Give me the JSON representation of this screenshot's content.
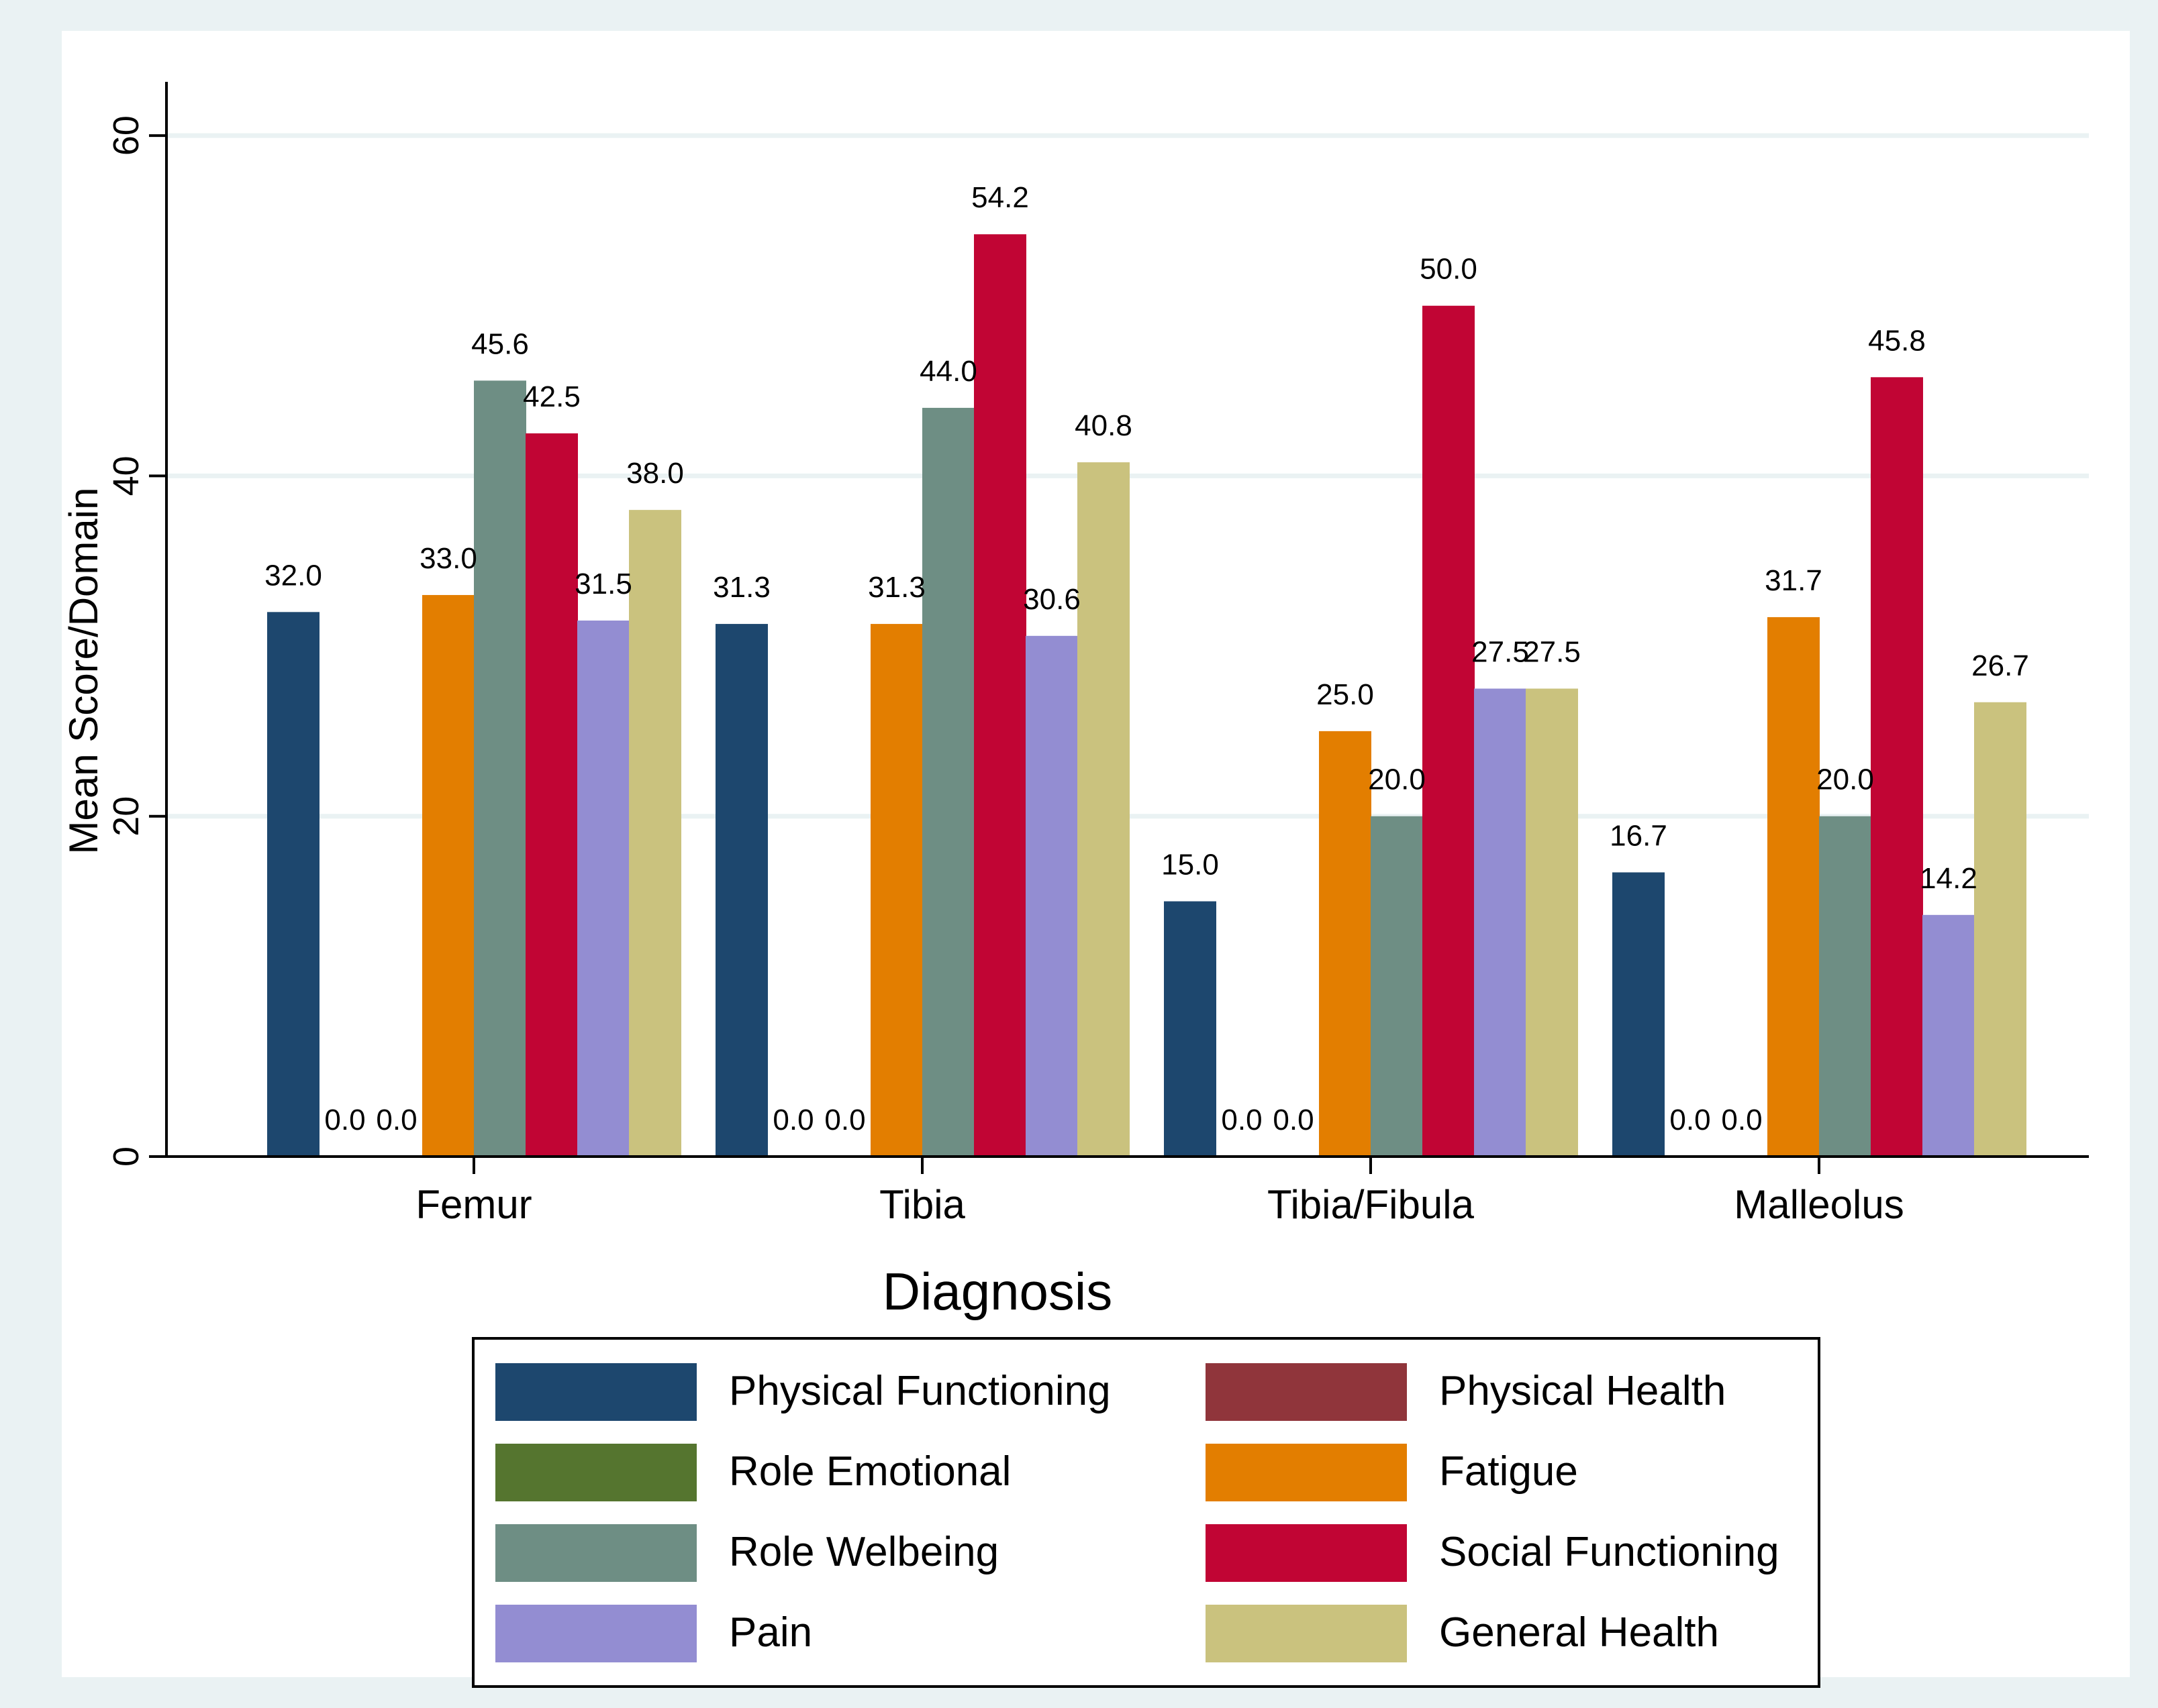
{
  "chart_data": {
    "type": "bar",
    "title": "",
    "xlabel": "Diagnosis",
    "ylabel": "Mean Score/Domain",
    "ylim": [
      0,
      63
    ],
    "yticks": [
      0,
      20,
      40,
      60
    ],
    "grid": true,
    "legend_position": "bottom",
    "categories": [
      "Femur",
      "Tibia",
      "Tibia/Fibula",
      "Malleolus"
    ],
    "series": [
      {
        "name": "Physical Functioning",
        "color": "#1d476e",
        "values": [
          32.0,
          31.3,
          15.0,
          16.7
        ],
        "labels": [
          "32.0",
          "31.3",
          "15.0",
          "16.7"
        ]
      },
      {
        "name": "Physical Health",
        "color": "#90353b",
        "values": [
          0.0,
          0.0,
          0.0,
          0.0
        ],
        "labels": [
          "0.0",
          "0.0",
          "0.0",
          "0.0"
        ]
      },
      {
        "name": "Role Emotional",
        "color": "#55752f",
        "values": [
          0.0,
          0.0,
          0.0,
          0.0
        ],
        "labels": [
          "0.0",
          "0.0",
          "0.0",
          "0.0"
        ]
      },
      {
        "name": "Fatigue",
        "color": "#e37e00",
        "values": [
          33.0,
          31.3,
          25.0,
          31.7
        ],
        "labels": [
          "33.0",
          "31.3",
          "25.0",
          "31.7"
        ]
      },
      {
        "name": "Role Welbeing",
        "color": "#6e8e84",
        "values": [
          45.6,
          44.0,
          20.0,
          20.0
        ],
        "labels": [
          "45.6",
          "44.0",
          "20.0",
          "20.0"
        ]
      },
      {
        "name": "Social Functioning",
        "color": "#c10534",
        "values": [
          42.5,
          54.2,
          50.0,
          45.8
        ],
        "labels": [
          "42.5",
          "54.2",
          "50.0",
          "45.8"
        ]
      },
      {
        "name": "Pain",
        "color": "#938dd2",
        "values": [
          31.5,
          30.6,
          27.5,
          14.2
        ],
        "labels": [
          "31.5",
          "30.6",
          "27.5",
          "14.2"
        ]
      },
      {
        "name": "General Health",
        "color": "#cac27e",
        "values": [
          38.0,
          40.8,
          27.5,
          26.7
        ],
        "labels": [
          "38.0",
          "40.8",
          "27.5",
          "26.7"
        ]
      }
    ]
  }
}
